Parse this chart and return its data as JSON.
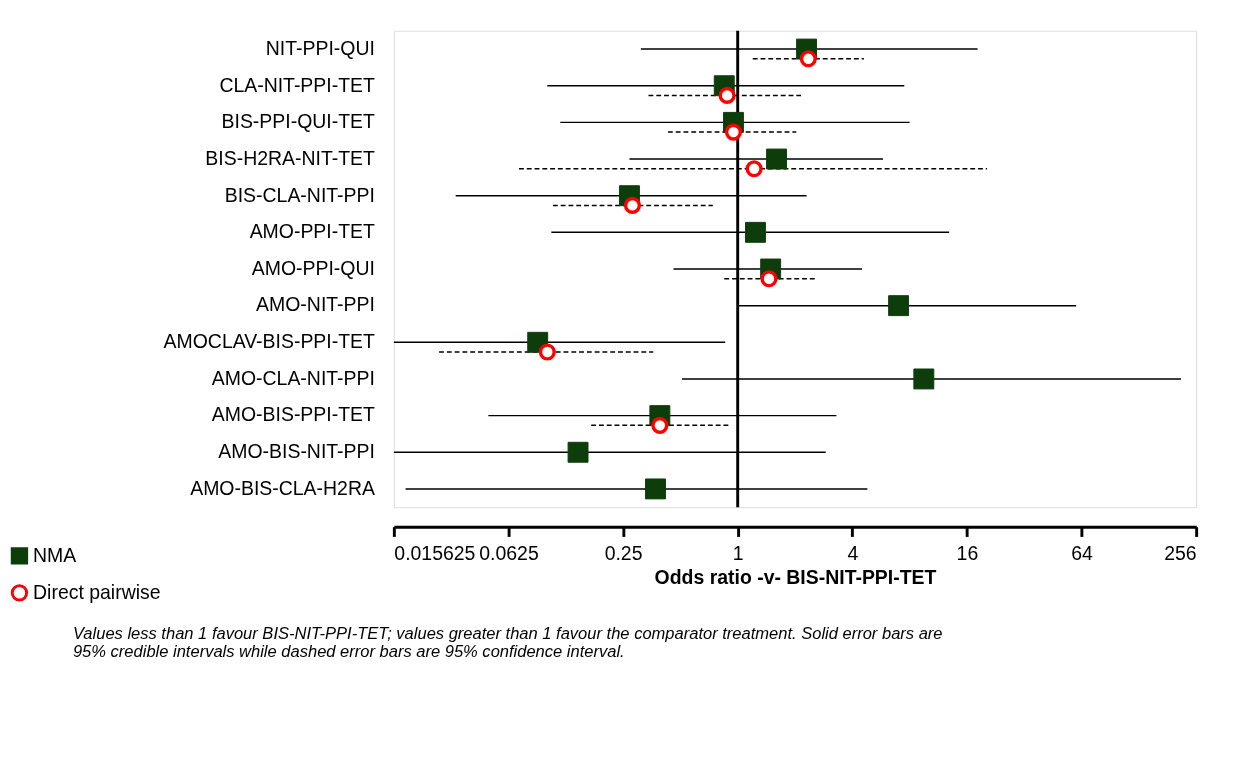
{
  "chart_data": {
    "type": "scatter",
    "orientation": "horizontal",
    "log": "x",
    "xlabel": "Odds ratio -v- BIS-NIT-PPI-TET",
    "categories": [
      "NIT-PPI-QUI",
      "CLA-NIT-PPI-TET",
      "BIS-PPI-QUI-TET",
      "BIS-H2RA-NIT-TET",
      "BIS-CLA-NIT-PPI",
      "AMO-PPI-TET",
      "AMO-PPI-QUI",
      "AMO-NIT-PPI",
      "AMOCLAV-BIS-PPI-TET",
      "AMO-CLA-NIT-PPI",
      "AMO-BIS-PPI-TET",
      "AMO-BIS-NIT-PPI",
      "AMO-BIS-CLA-H2RA"
    ],
    "series": [
      {
        "name": "NMA",
        "color": "#0d3d0a",
        "marker": "square",
        "line_style": "solid",
        "values": [
          2.3,
          0.85,
          0.95,
          1.6,
          0.27,
          1.24,
          1.49,
          7.0,
          0.089,
          9.5,
          0.39,
          0.145,
          0.37
        ],
        "errors": [
          [
            0.31,
            18.2
          ],
          [
            0.1,
            7.5
          ],
          [
            0.117,
            8.0
          ],
          [
            0.27,
            5.8
          ],
          [
            0.033,
            2.3
          ],
          [
            0.105,
            12.9
          ],
          [
            0.46,
            4.5
          ],
          [
            1.0,
            60
          ],
          [
            0.015625,
            0.86
          ],
          [
            0.51,
            213
          ],
          [
            0.049,
            3.3
          ],
          [
            0.015625,
            2.9
          ],
          [
            0.018,
            4.8
          ]
        ]
      },
      {
        "name": "Direct pairwise",
        "color": "#ff0000",
        "marker": "circle",
        "line_style": "dashed",
        "values": [
          2.35,
          0.88,
          0.95,
          1.22,
          0.28,
          null,
          1.46,
          null,
          0.1,
          null,
          0.39,
          null,
          null
        ],
        "errors": [
          [
            1.2,
            4.6
          ],
          [
            0.34,
            2.15
          ],
          [
            0.43,
            2.03
          ],
          [
            0.071,
            20.4
          ],
          [
            0.107,
            0.74
          ],
          null,
          [
            0.85,
            2.54
          ],
          null,
          [
            0.027,
            0.36
          ],
          null,
          [
            0.17,
            0.9
          ],
          null,
          null
        ]
      }
    ],
    "xlim": [
      0.015625,
      256
    ],
    "xticks": [
      0.015625,
      0.0625,
      0.25,
      1,
      4,
      16,
      64,
      256
    ],
    "ref_lines": [
      {
        "axis": "x",
        "value": 1,
        "color": "#000000"
      }
    ],
    "grid": false,
    "legend": "bottom left",
    "annotations": [
      "Values less than 1 favour BIS-NIT-PPI-TET; values greater than 1 favour the comparator treatment. Solid error bars are 95% credible intervals while dashed error bars are 95% confidence interval."
    ]
  }
}
